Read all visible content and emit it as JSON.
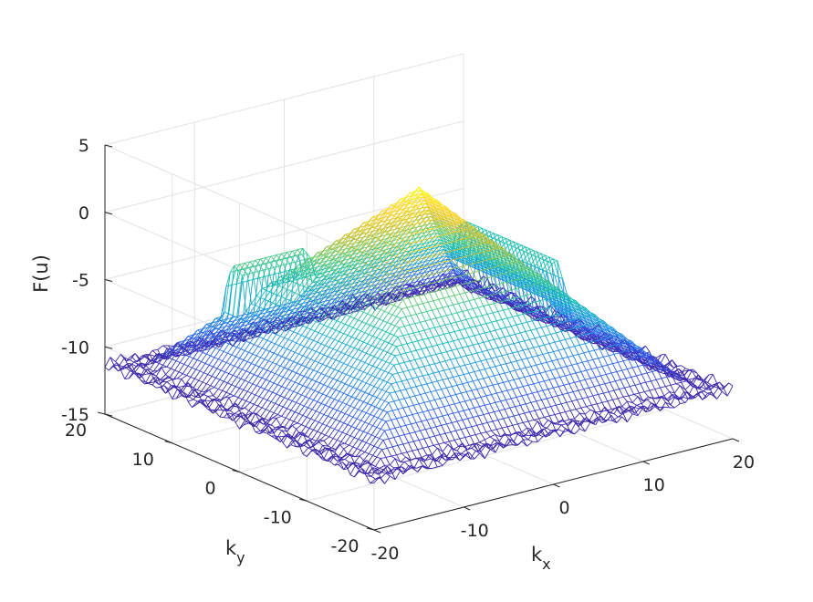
{
  "chart_data": {
    "type": "surface-mesh",
    "title": "",
    "xlabel": {
      "base": "k",
      "sub": "x"
    },
    "ylabel": {
      "base": "k",
      "sub": "y"
    },
    "zlabel": "F(u)",
    "xlim": [
      -20,
      20
    ],
    "ylim": [
      -20,
      20
    ],
    "zlim": [
      -15,
      5
    ],
    "x_ticks": [
      -20,
      -10,
      0,
      10,
      20
    ],
    "y_ticks": [
      -20,
      -10,
      0,
      10,
      20
    ],
    "z_ticks": [
      -15,
      -10,
      -5,
      0,
      5
    ],
    "x_tick_labels": [
      "-20",
      "-10",
      "0",
      "10",
      "20"
    ],
    "y_tick_labels": [
      "-20",
      "-10",
      "0",
      "10",
      "20"
    ],
    "z_tick_labels": [
      "-15",
      "-10",
      "-5",
      "0",
      "5"
    ],
    "grid": true,
    "colormap": "parula",
    "colormap_stops": [
      "#3e26a8",
      "#2f5ff5",
      "#1f97e2",
      "#12bdb6",
      "#5bcc7a",
      "#c6c033",
      "#fbd225",
      "#f9fb0e"
    ],
    "surface": {
      "peak": {
        "kx": 0,
        "ky": 0,
        "value": 2.8
      },
      "floor_value": -11.3,
      "slope_per_unit": 0.8,
      "ridges": [
        {
          "kx": 14,
          "ky_range": [
            -2,
            12
          ],
          "height": 2.5
        },
        {
          "kx_range": [
            -12,
            -4
          ],
          "ky": 12,
          "height": 1.8
        }
      ]
    }
  }
}
